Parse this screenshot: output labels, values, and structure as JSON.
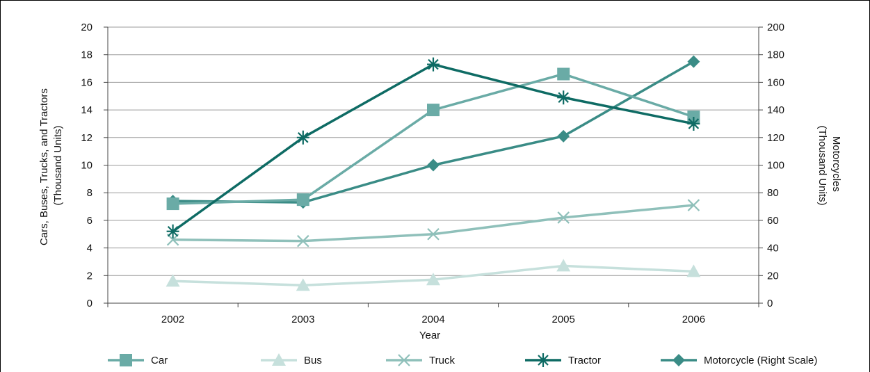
{
  "chart_data": {
    "type": "line",
    "categories": [
      "2002",
      "2003",
      "2004",
      "2005",
      "2006"
    ],
    "xlabel": "Year",
    "ylabel_left": [
      "Cars, Buses, Trucks, and Tractors",
      "(Thousand Units)"
    ],
    "ylabel_right": [
      "Motorcycles",
      "(Thousand Units)"
    ],
    "ylim_left": [
      0,
      20
    ],
    "yticks_left": [
      "0",
      "2",
      "4",
      "6",
      "8",
      "10",
      "12",
      "14",
      "16",
      "18",
      "20"
    ],
    "ylim_right": [
      0,
      200
    ],
    "yticks_right": [
      "0",
      "20",
      "40",
      "60",
      "80",
      "100",
      "120",
      "140",
      "160",
      "180",
      "200"
    ],
    "grid": "horizontal",
    "legend_position": "bottom",
    "series": [
      {
        "name": "Car",
        "axis": "left",
        "marker": "square",
        "color": "#6aaba6",
        "values": [
          7.2,
          7.5,
          14.0,
          16.6,
          13.5
        ]
      },
      {
        "name": "Bus",
        "axis": "left",
        "marker": "triangle",
        "color": "#c6e0dc",
        "values": [
          1.6,
          1.3,
          1.7,
          2.7,
          2.3
        ]
      },
      {
        "name": "Truck",
        "axis": "left",
        "marker": "x",
        "color": "#8fc0ba",
        "values": [
          4.6,
          4.5,
          5.0,
          6.2,
          7.1
        ]
      },
      {
        "name": "Tractor",
        "axis": "left",
        "marker": "asterisk",
        "color": "#0e6b64",
        "values": [
          5.2,
          12.0,
          17.3,
          14.9,
          13.0
        ]
      },
      {
        "name": "Motorcycle (Right Scale)",
        "axis": "right",
        "marker": "diamond",
        "color": "#3a8c86",
        "values": [
          74,
          73,
          100,
          121,
          175
        ]
      }
    ]
  }
}
